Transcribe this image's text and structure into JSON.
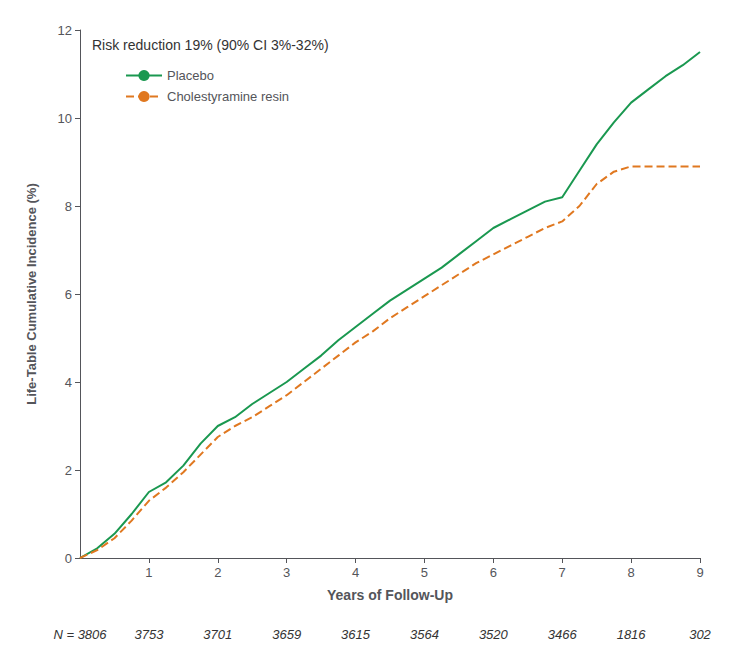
{
  "chart_data": {
    "type": "line",
    "xlabel": "Years of Follow-Up",
    "ylabel": "Life-Table Cumulative Incidence (%)",
    "annotation": "Risk reduction 19% (90% CI 3%-32%)",
    "xlim": [
      0,
      9
    ],
    "ylim": [
      0,
      12
    ],
    "xticks": [
      1,
      2,
      3,
      4,
      5,
      6,
      7,
      8,
      9
    ],
    "yticks": [
      0,
      2,
      4,
      6,
      8,
      10,
      12
    ],
    "grid": false,
    "legend": "upper left",
    "x": [
      0,
      0.25,
      0.5,
      0.75,
      1.0,
      1.25,
      1.5,
      1.75,
      2.0,
      2.25,
      2.5,
      2.75,
      3.0,
      3.25,
      3.5,
      3.75,
      4.0,
      4.25,
      4.5,
      4.75,
      5.0,
      5.25,
      5.5,
      5.75,
      6.0,
      6.25,
      6.5,
      6.75,
      7.0,
      7.25,
      7.5,
      7.75,
      8.0,
      8.25,
      8.5,
      8.75,
      9.0
    ],
    "series": [
      {
        "name": "Placebo",
        "color": "#1a9850",
        "line_style": "solid",
        "values": [
          0,
          0.22,
          0.55,
          1.0,
          1.5,
          1.72,
          2.1,
          2.6,
          3.0,
          3.2,
          3.5,
          3.75,
          4.0,
          4.3,
          4.6,
          4.95,
          5.25,
          5.55,
          5.85,
          6.1,
          6.35,
          6.6,
          6.9,
          7.2,
          7.5,
          7.7,
          7.9,
          8.1,
          8.2,
          8.8,
          9.4,
          9.9,
          10.35,
          10.65,
          10.95,
          11.2,
          11.5
        ]
      },
      {
        "name": "Cholestyramine resin",
        "color": "#e07820",
        "line_style": "dashed",
        "values": [
          0,
          0.18,
          0.45,
          0.85,
          1.3,
          1.6,
          1.95,
          2.35,
          2.75,
          3.0,
          3.2,
          3.45,
          3.7,
          4.0,
          4.3,
          4.6,
          4.9,
          5.15,
          5.45,
          5.7,
          5.95,
          6.2,
          6.45,
          6.7,
          6.9,
          7.1,
          7.3,
          7.5,
          7.65,
          8.0,
          8.5,
          8.78,
          8.9,
          8.9,
          8.9,
          8.9,
          8.9
        ]
      }
    ],
    "n_row": {
      "x": [
        0,
        1,
        2,
        3,
        4,
        5,
        6,
        7,
        8,
        9
      ],
      "labels": [
        "N = 3806",
        "3753",
        "3701",
        "3659",
        "3615",
        "3564",
        "3520",
        "3466",
        "1816",
        "302"
      ]
    }
  }
}
